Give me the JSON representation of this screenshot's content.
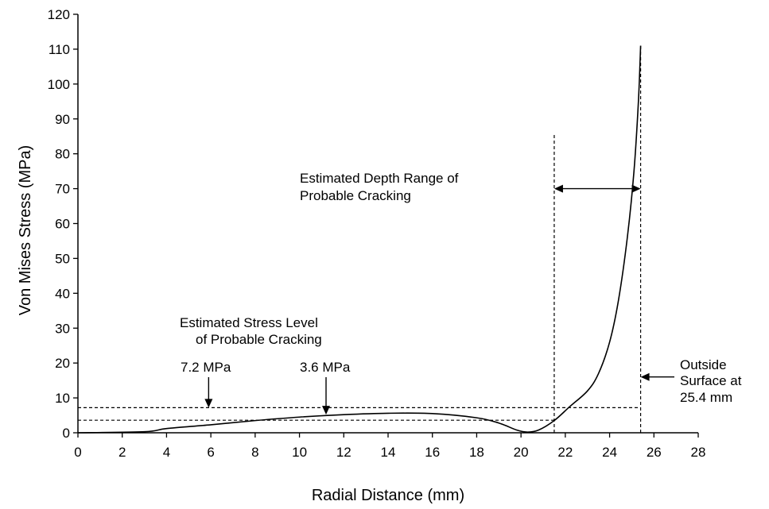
{
  "chart_data": {
    "type": "line",
    "title": "",
    "xlabel": "Radial Distance (mm)",
    "ylabel": "Von Mises Stress (MPa)",
    "xlim": [
      0,
      28
    ],
    "ylim": [
      0,
      120
    ],
    "x_ticks": [
      0,
      2,
      4,
      6,
      8,
      10,
      12,
      14,
      16,
      18,
      20,
      22,
      24,
      26,
      28
    ],
    "y_ticks": [
      0,
      10,
      20,
      30,
      40,
      50,
      60,
      70,
      80,
      90,
      100,
      110,
      120
    ],
    "grid": false,
    "legend": "none",
    "series": [
      {
        "x": [
          0,
          3,
          4,
          6,
          8,
          10,
          12,
          14,
          16,
          18,
          19,
          19.8,
          20.3,
          20.8,
          21.5,
          22.2,
          23,
          23.5,
          24,
          24.4,
          24.8,
          25.1,
          25.3,
          25.4
        ],
        "y": [
          0,
          0.3,
          1.2,
          2.3,
          3.5,
          4.5,
          5.2,
          5.6,
          5.5,
          4.3,
          2.8,
          0.8,
          0.2,
          0.8,
          3.5,
          7.5,
          12,
          17,
          26,
          38,
          56,
          75,
          95,
          111
        ]
      }
    ],
    "reference_lines": {
      "horizontal": [
        {
          "y": 7.2,
          "x_start": 0,
          "x_end": 25.4
        },
        {
          "y": 3.6,
          "x_start": 0,
          "x_end": 21.5
        }
      ],
      "vertical": [
        {
          "x": 21.5,
          "y_start": 0,
          "y_end": 86
        },
        {
          "x": 25.4,
          "y_start": 0,
          "y_end": 111
        }
      ]
    },
    "annotations": {
      "depth_range": {
        "text_line1": "Estimated Depth Range of",
        "text_line2": "Probable Cracking",
        "arrow_from": 21.5,
        "arrow_to": 25.4,
        "arrow_y": 70
      },
      "stress_level": {
        "text_line1": "Estimated Stress Level",
        "text_line2": "of Probable Cracking"
      },
      "label_72": {
        "text": "7.2 MPa",
        "x": 5.9,
        "y": 7.2
      },
      "label_36": {
        "text": "3.6 MPa",
        "x": 11.2,
        "y": 5.2
      },
      "outside_surface": {
        "line1": "Outside",
        "line2": "Surface at",
        "line3": "25.4 mm",
        "arrow_x": 25.4,
        "arrow_y": 16
      }
    }
  }
}
